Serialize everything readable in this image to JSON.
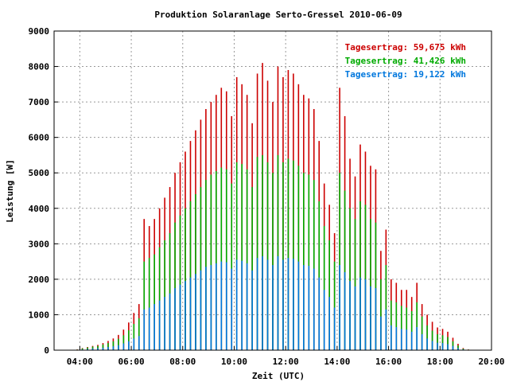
{
  "chart_data": {
    "type": "bar",
    "title": "Produktion Solaranlage Serto-Gressel 2010-06-09",
    "xlabel": "Zeit (UTC)",
    "ylabel": "Leistung [W]",
    "x_unit": "hours UTC",
    "xlim": [
      3.0,
      20.0
    ],
    "ylim": [
      0,
      9000
    ],
    "grid": true,
    "grid_style": "dotted",
    "legend_position": "top-right",
    "x_ticks": [
      "04:00",
      "06:00",
      "08:00",
      "10:00",
      "12:00",
      "14:00",
      "16:00",
      "18:00",
      "20:00"
    ],
    "y_ticks": [
      "0",
      "1000",
      "2000",
      "3000",
      "4000",
      "5000",
      "6000",
      "7000",
      "8000",
      "9000"
    ],
    "draw_order": "series drawn back to front; values read as visible bar tops",
    "series": [
      {
        "name": "Tagesertrag: 59,675 kWh",
        "color": "#cc0000",
        "x": [
          3.9,
          4.1,
          4.3,
          4.5,
          4.7,
          4.9,
          5.1,
          5.3,
          5.5,
          5.7,
          5.9,
          6.1,
          6.3,
          6.5,
          6.7,
          6.9,
          7.1,
          7.3,
          7.5,
          7.7,
          7.9,
          8.1,
          8.3,
          8.5,
          8.7,
          8.9,
          9.1,
          9.3,
          9.5,
          9.7,
          9.9,
          10.1,
          10.3,
          10.5,
          10.7,
          10.9,
          11.1,
          11.3,
          11.5,
          11.7,
          11.9,
          12.1,
          12.3,
          12.5,
          12.7,
          12.9,
          13.1,
          13.3,
          13.5,
          13.7,
          13.9,
          14.1,
          14.3,
          14.5,
          14.7,
          14.9,
          15.1,
          15.3,
          15.5,
          15.7,
          15.9,
          16.1,
          16.3,
          16.5,
          16.7,
          16.9,
          17.1,
          17.3,
          17.5,
          17.7,
          17.9,
          18.1,
          18.3,
          18.5,
          18.7,
          18.9,
          19.1
        ],
        "values": [
          20,
          60,
          90,
          120,
          150,
          200,
          260,
          330,
          430,
          580,
          780,
          1050,
          1300,
          3700,
          3500,
          3700,
          4000,
          4300,
          4600,
          5000,
          5300,
          5600,
          5900,
          6200,
          6500,
          6800,
          7000,
          7200,
          7400,
          7300,
          6600,
          7700,
          7500,
          7200,
          6400,
          7800,
          8100,
          7600,
          7000,
          8000,
          7700,
          7900,
          7800,
          7500,
          7200,
          7100,
          6800,
          5900,
          4700,
          4100,
          3300,
          7400,
          6600,
          5400,
          4900,
          5800,
          5600,
          5200,
          5100,
          2800,
          3400,
          2000,
          1900,
          1700,
          1700,
          1500,
          1900,
          1300,
          1000,
          800,
          640,
          600,
          520,
          350,
          180,
          60,
          20
        ]
      },
      {
        "name": "Tagesertrag: 41,426 kWh",
        "color": "#00aa00",
        "x": [
          3.9,
          4.1,
          4.3,
          4.5,
          4.7,
          4.9,
          5.1,
          5.3,
          5.5,
          5.7,
          5.9,
          6.1,
          6.3,
          6.5,
          6.7,
          6.9,
          7.1,
          7.3,
          7.5,
          7.7,
          7.9,
          8.1,
          8.3,
          8.5,
          8.7,
          8.9,
          9.1,
          9.3,
          9.5,
          9.7,
          9.9,
          10.1,
          10.3,
          10.5,
          10.7,
          10.9,
          11.1,
          11.3,
          11.5,
          11.7,
          11.9,
          12.1,
          12.3,
          12.5,
          12.7,
          12.9,
          13.1,
          13.3,
          13.5,
          13.7,
          13.9,
          14.1,
          14.3,
          14.5,
          14.7,
          14.9,
          15.1,
          15.3,
          15.5,
          15.7,
          15.9,
          16.1,
          16.3,
          16.5,
          16.7,
          16.9,
          17.1,
          17.3,
          17.5,
          17.7,
          17.9,
          18.1,
          18.3,
          18.5,
          18.7,
          18.9,
          19.1
        ],
        "values": [
          15,
          50,
          75,
          100,
          120,
          160,
          200,
          250,
          320,
          420,
          560,
          740,
          900,
          2500,
          2600,
          2700,
          2900,
          3100,
          3300,
          3600,
          3800,
          4000,
          4200,
          4400,
          4600,
          4800,
          4950,
          5050,
          5150,
          5100,
          4700,
          5300,
          5250,
          5100,
          4600,
          5450,
          5500,
          5300,
          5000,
          5500,
          5300,
          5400,
          5350,
          5200,
          5000,
          4950,
          4800,
          4200,
          3500,
          3100,
          2500,
          5000,
          4500,
          4000,
          3700,
          4200,
          4100,
          3700,
          3600,
          2000,
          2400,
          1400,
          1350,
          1250,
          1200,
          1100,
          1350,
          950,
          700,
          550,
          450,
          420,
          370,
          250,
          130,
          40,
          15
        ]
      },
      {
        "name": "Tagesertrag: 19,122 kWh",
        "color": "#0077dd",
        "x": [
          3.9,
          4.1,
          4.3,
          4.5,
          4.7,
          4.9,
          5.1,
          5.3,
          5.5,
          5.7,
          5.9,
          6.1,
          6.3,
          6.5,
          6.7,
          6.9,
          7.1,
          7.3,
          7.5,
          7.7,
          7.9,
          8.1,
          8.3,
          8.5,
          8.7,
          8.9,
          9.1,
          9.3,
          9.5,
          9.7,
          9.9,
          10.1,
          10.3,
          10.5,
          10.7,
          10.9,
          11.1,
          11.3,
          11.5,
          11.7,
          11.9,
          12.1,
          12.3,
          12.5,
          12.7,
          12.9,
          13.1,
          13.3,
          13.5,
          13.7,
          13.9,
          14.1,
          14.3,
          14.5,
          14.7,
          14.9,
          15.1,
          15.3,
          15.5,
          15.7,
          15.9,
          16.1,
          16.3,
          16.5,
          16.7,
          16.9,
          17.1,
          17.3,
          17.5,
          17.7,
          17.9,
          18.1,
          18.3,
          18.5,
          18.7,
          18.9,
          19.1
        ],
        "values": [
          5,
          20,
          30,
          45,
          55,
          70,
          90,
          110,
          140,
          190,
          250,
          330,
          400,
          1150,
          1200,
          1300,
          1400,
          1500,
          1600,
          1750,
          1850,
          1950,
          2050,
          2150,
          2250,
          2350,
          2400,
          2450,
          2500,
          2480,
          2300,
          2550,
          2520,
          2450,
          2250,
          2600,
          2650,
          2550,
          2400,
          2650,
          2550,
          2600,
          2580,
          2500,
          2400,
          2380,
          2300,
          2050,
          1700,
          1500,
          1200,
          2400,
          2200,
          1950,
          1800,
          2050,
          2000,
          1800,
          1750,
          950,
          1150,
          700,
          650,
          600,
          580,
          520,
          650,
          450,
          330,
          260,
          210,
          200,
          170,
          120,
          60,
          20,
          5
        ]
      }
    ]
  }
}
